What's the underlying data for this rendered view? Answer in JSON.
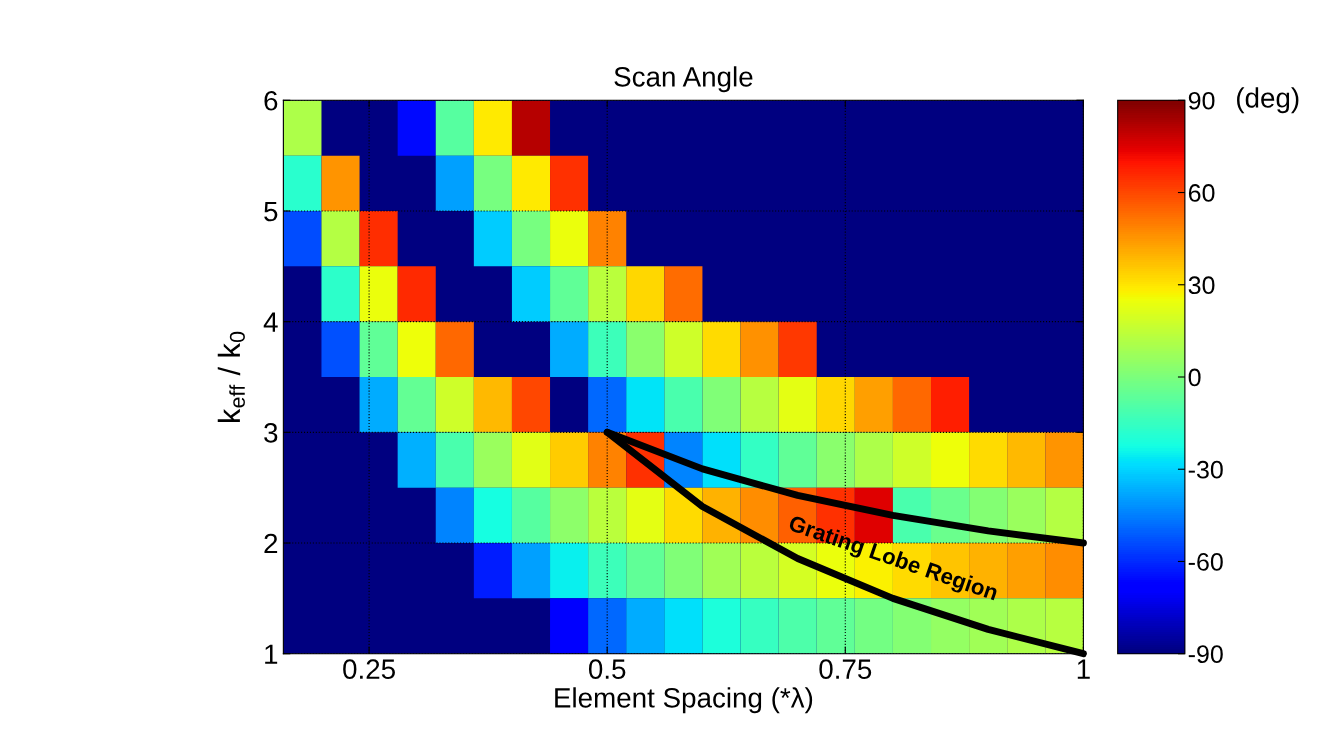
{
  "chart_data": {
    "type": "heatmap",
    "title": "Scan Angle",
    "xlabel": "Element Spacing (*λ)",
    "ylabel": "k$_{eff}$ / k$_{0}$",
    "clabel": "(deg)",
    "x": [
      0.18,
      0.22,
      0.26,
      0.3,
      0.34,
      0.38,
      0.42,
      0.46,
      0.5,
      0.54,
      0.58,
      0.62,
      0.66,
      0.7,
      0.74,
      0.78,
      0.82,
      0.86,
      0.9,
      0.94,
      0.98
    ],
    "y": [
      5.75,
      5.25,
      4.75,
      4.25,
      3.75,
      3.25,
      2.75,
      2.25,
      1.75,
      1.25
    ],
    "cells": [
      [
        11,
        null,
        null,
        -66,
        -8,
        29,
        81,
        null,
        null,
        null,
        null,
        null,
        null,
        null,
        null,
        null,
        null,
        null,
        null,
        null,
        null
      ],
      [
        -18,
        45,
        null,
        null,
        -39,
        -1,
        29,
        64,
        null,
        null,
        null,
        null,
        null,
        null,
        null,
        null,
        null,
        null,
        null,
        null,
        null
      ],
      [
        -54,
        12,
        65,
        null,
        null,
        -31,
        -1,
        24,
        49,
        null,
        null,
        null,
        null,
        null,
        null,
        null,
        null,
        null,
        null,
        null,
        null
      ],
      [
        null,
        -17,
        24,
        66,
        null,
        null,
        -31,
        -6,
        14,
        33,
        53,
        null,
        null,
        null,
        null,
        null,
        null,
        null,
        null,
        null,
        null
      ],
      [
        null,
        -53,
        -6,
        25,
        54,
        null,
        null,
        -37,
        -14,
        3,
        18,
        32,
        46,
        63,
        null,
        null,
        null,
        null,
        null,
        null,
        null
      ],
      [
        null,
        null,
        -37,
        -5,
        18,
        38,
        60,
        null,
        -49,
        -27,
        -11,
        1,
        13,
        23,
        33,
        43,
        54,
        68,
        null,
        null,
        null
      ],
      [
        null,
        null,
        null,
        -36,
        -11,
        7,
        22,
        35,
        49,
        64,
        -44,
        -28,
        -16,
        -6,
        3,
        11,
        18,
        25,
        32,
        38,
        45
      ],
      [
        null,
        null,
        null,
        null,
        -44,
        -22,
        -8,
        4,
        14,
        23,
        32,
        40,
        47,
        55,
        64,
        75,
        -11,
        -4,
        2,
        7,
        12
      ],
      [
        null,
        null,
        null,
        null,
        null,
        -62,
        -39,
        -25,
        -14,
        -6,
        1,
        8,
        14,
        19,
        24,
        28,
        32,
        36,
        40,
        43,
        47
      ],
      [
        null,
        null,
        null,
        null,
        null,
        null,
        null,
        -68,
        -49,
        -37,
        -28,
        -21,
        -15,
        -10,
        -6,
        -2,
        2,
        5,
        8,
        11,
        13
      ]
    ],
    "series": [
      {
        "type": "line",
        "color": "#000000",
        "x": [
          0.5,
          0.6,
          0.7,
          0.8,
          0.9,
          1.0
        ],
        "values": [
          3,
          2.67,
          2.43,
          2.25,
          2.11,
          2
        ]
      },
      {
        "type": "line",
        "color": "#000000",
        "x": [
          0.5,
          0.6,
          0.7,
          0.8,
          0.9,
          1.0
        ],
        "values": [
          3,
          2.33,
          1.86,
          1.5,
          1.22,
          1
        ]
      }
    ],
    "annotations": [
      "Grating Lobe Region"
    ],
    "xlim": [
      0.16,
      1
    ],
    "ylim": [
      1,
      6
    ],
    "xticks": [
      0.25,
      0.5,
      0.75,
      1
    ],
    "yticks": [
      1,
      2,
      3,
      4,
      5,
      6
    ],
    "clim": [
      -90,
      90
    ],
    "cticks": [
      -90,
      -60,
      -30,
      0,
      30,
      60,
      90
    ],
    "grid": true
  }
}
